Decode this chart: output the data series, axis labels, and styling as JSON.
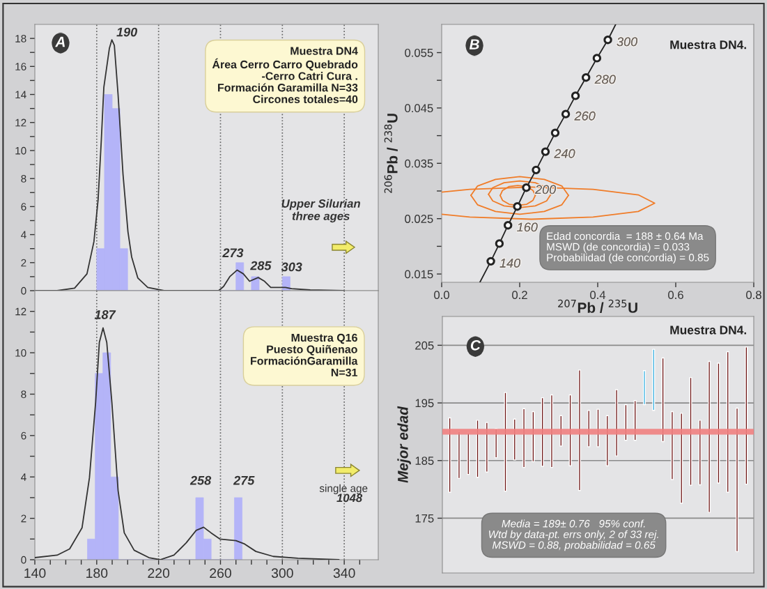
{
  "chart_data": [
    {
      "type": "histogram",
      "bins": [
        180,
        185,
        190,
        195,
        200,
        205,
        210,
        215,
        220,
        225,
        230,
        235,
        240,
        245,
        250,
        255,
        260,
        265,
        270,
        275,
        280,
        285,
        290,
        295,
        300,
        305
      ],
      "values": [
        3,
        14,
        13,
        3,
        0,
        0,
        0,
        0,
        0,
        0,
        0,
        0,
        0,
        0,
        0,
        0,
        0,
        0,
        2,
        0,
        1,
        0,
        0,
        0,
        1
      ],
      "color": "#b4b4f8",
      "series": [
        {
          "type": "line",
          "color": "#333333",
          "x": [
            140,
            154.4,
            165.7,
            173.7,
            178.2,
            180.9,
            183,
            184.6,
            188.2,
            189.8,
            191.4,
            193.8,
            197,
            200.2,
            202.6,
            206.6,
            213,
            223.5,
            258.8,
            262,
            266,
            270.8,
            274.8,
            278.8,
            284.4,
            288.5,
            292.5,
            302,
            306,
            318,
            339.8
          ],
          "values": [
            0,
            0,
            0.18,
            1.2,
            3.5,
            6.5,
            10.8,
            14.5,
            17.3,
            17.9,
            17.5,
            14,
            8.3,
            4.2,
            2.4,
            0.9,
            0.23,
            0,
            0,
            0.3,
            1.0,
            1.47,
            1.2,
            0.67,
            0.94,
            0.67,
            0.23,
            0.23,
            0.14,
            0.05,
            0
          ]
        }
      ],
      "xlim": [
        140,
        362
      ],
      "ylim": [
        0,
        19
      ],
      "yticks": [
        0,
        {
          "value": 1,
          "label": null
        },
        2,
        {
          "value": 3,
          "label": null
        },
        4,
        {
          "value": 5,
          "label": null
        },
        6,
        {
          "value": 7,
          "label": null
        },
        8,
        {
          "value": 9,
          "label": null
        },
        10,
        {
          "value": 11,
          "label": null
        },
        12,
        {
          "value": 13,
          "label": null
        },
        14,
        {
          "value": 15,
          "label": null
        },
        16,
        {
          "value": 17,
          "label": null
        },
        18
      ],
      "tick_labels": "y",
      "ref_lines": [
        {
          "axis": "x",
          "value": 180,
          "color": "#555555",
          "line_style": "dotted"
        },
        {
          "axis": "x",
          "value": 220,
          "color": "#555555",
          "line_style": "dotted"
        },
        {
          "axis": "x",
          "value": 260,
          "color": "#555555",
          "line_style": "dotted"
        },
        {
          "axis": "x",
          "value": 300,
          "color": "#555555",
          "line_style": "dotted"
        },
        {
          "axis": "x",
          "value": 340,
          "color": "#555555",
          "line_style": "dotted"
        }
      ],
      "annotations": [
        "A",
        "190",
        "273",
        "285",
        "303",
        "Muestra DN4\nÁrea Cerro Carro Quebrado\n-Cerro Catri Cura .\nFormación Garamilla N=33\nCircones totales=40",
        "Upper Silurian\nthree ages"
      ]
    },
    {
      "type": "histogram",
      "bins": [
        174,
        179,
        184,
        189,
        194,
        199,
        204,
        209,
        214,
        219,
        224,
        229,
        234,
        239,
        244,
        249,
        254,
        259,
        264,
        269,
        274
      ],
      "values": [
        1,
        9,
        10,
        4,
        0,
        0,
        0,
        0,
        0,
        0,
        0,
        0,
        0,
        0,
        3,
        1,
        0,
        0,
        0,
        3
      ],
      "color": "#b4b4f8",
      "series": [
        {
          "type": "line",
          "color": "#333333",
          "x": [
            140,
            154.4,
            162.5,
            170.5,
            175.3,
            179.3,
            181.7,
            184.1,
            186.5,
            189.8,
            193.8,
            197.8,
            204.2,
            213.8,
            221,
            229.9,
            237.9,
            244.3,
            249.1,
            253.9,
            259.6,
            270,
            275.6,
            282.9,
            294.1,
            310.1,
            336.6
          ],
          "values": [
            0.1,
            0.22,
            0.52,
            1.54,
            3.96,
            7.6,
            10.5,
            11.2,
            10.5,
            7.6,
            3.35,
            1.3,
            0.46,
            0.1,
            0,
            0.22,
            0.82,
            1.42,
            1.57,
            1.3,
            1.0,
            0.92,
            0.76,
            0.4,
            0.16,
            0.07,
            0
          ]
        }
      ],
      "xlim": [
        140,
        362
      ],
      "ylim": [
        0,
        13
      ],
      "xticks": [
        140,
        {
          "value": 150,
          "label": null
        },
        {
          "value": 160,
          "label": null
        },
        {
          "value": 170,
          "label": null
        },
        180,
        {
          "value": 190,
          "label": null
        },
        {
          "value": 200,
          "label": null
        },
        {
          "value": 210,
          "label": null
        },
        220,
        {
          "value": 230,
          "label": null
        },
        {
          "value": 240,
          "label": null
        },
        {
          "value": 250,
          "label": null
        },
        260,
        {
          "value": 270,
          "label": null
        },
        {
          "value": 280,
          "label": null
        },
        {
          "value": 290,
          "label": null
        },
        300,
        {
          "value": 310,
          "label": null
        },
        {
          "value": 320,
          "label": null
        },
        {
          "value": 330,
          "label": null
        },
        340,
        {
          "value": 350,
          "label": null
        }
      ],
      "yticks": [
        0,
        {
          "value": 1,
          "label": null
        },
        2,
        {
          "value": 3,
          "label": null
        },
        4,
        {
          "value": 5,
          "label": null
        },
        6,
        {
          "value": 7,
          "label": null
        },
        8,
        {
          "value": 9,
          "label": null
        },
        10,
        {
          "value": 11,
          "label": null
        },
        12
      ],
      "ref_lines": [
        {
          "axis": "x",
          "value": 180,
          "color": "#555555",
          "line_style": "dotted"
        },
        {
          "axis": "x",
          "value": 220,
          "color": "#555555",
          "line_style": "dotted"
        },
        {
          "axis": "x",
          "value": 260,
          "color": "#555555",
          "line_style": "dotted"
        },
        {
          "axis": "x",
          "value": 300,
          "color": "#555555",
          "line_style": "dotted"
        },
        {
          "axis": "x",
          "value": 340,
          "color": "#555555",
          "line_style": "dotted"
        }
      ],
      "annotations": [
        "187",
        "258",
        "275",
        "Muestra Q16\nPuesto Quiñenao\nFormaciónGaramilla\nN=31",
        "single age",
        "1048"
      ]
    },
    {
      "type": "line",
      "xlim": [
        0,
        0.8
      ],
      "ylim": [
        0.0135,
        0.0601
      ],
      "xticks": [
        {
          "value": 0,
          "label": "0.0"
        },
        0.2,
        0.4,
        0.6,
        0.8
      ],
      "yticks": [
        0.015,
        {
          "value": 0.02,
          "label": null
        },
        0.025,
        {
          "value": 0.03,
          "label": null
        },
        0.035,
        {
          "value": 0.04,
          "label": null
        },
        0.045,
        {
          "value": 0.05,
          "label": null
        },
        0.055
      ],
      "xlabel": "$^{207}$Pb / $^{235}$U",
      "ylabel": "$^{206}$Pb / $^{238}$U",
      "series": [
        {
          "type": "line",
          "color": "#f07c28",
          "x": [
            0,
            0.072,
            0.23,
            0.388,
            0.504,
            0.546,
            0.504,
            0.388,
            0.23,
            0.072,
            0
          ],
          "values": [
            0.0258,
            0.0253,
            0.0249,
            0.0253,
            0.0263,
            0.0278,
            0.0293,
            0.0303,
            0.0307,
            0.0303,
            0.0298
          ]
        },
        {
          "type": "line",
          "color": "#f07c28",
          "x": [
            0.075,
            0.092,
            0.138,
            0.2,
            0.263,
            0.308,
            0.325
          ],
          "values": [
            0.0292,
            0.0309,
            0.0321,
            0.0326,
            0.0321,
            0.0309,
            0.0292
          ]
        },
        {
          "type": "line",
          "color": "#f07c28",
          "x": [
            0.075,
            0.092,
            0.138,
            0.2,
            0.263,
            0.308,
            0.325
          ],
          "values": [
            0.0292,
            0.0275,
            0.0263,
            0.0258,
            0.0263,
            0.0275,
            0.0292
          ]
        },
        {
          "type": "line",
          "color": "#f07c28",
          "x": [
            0.12,
            0.131,
            0.16,
            0.2,
            0.24,
            0.269,
            0.28
          ],
          "values": [
            0.0294,
            0.0306,
            0.0315,
            0.0318,
            0.0315,
            0.0306,
            0.0294
          ]
        },
        {
          "type": "line",
          "color": "#f07c28",
          "x": [
            0.12,
            0.131,
            0.16,
            0.2,
            0.24,
            0.269,
            0.28
          ],
          "values": [
            0.0294,
            0.0282,
            0.0273,
            0.027,
            0.0273,
            0.0282,
            0.0294
          ]
        },
        {
          "type": "line",
          "color": "#f07c28",
          "x": [
            0.15,
            0.156,
            0.173,
            0.195,
            0.218,
            0.234,
            0.24
          ],
          "values": [
            0.0292,
            0.0301,
            0.0308,
            0.031,
            0.0308,
            0.0301,
            0.0292
          ]
        },
        {
          "type": "line",
          "color": "#f07c28",
          "x": [
            0.15,
            0.156,
            0.173,
            0.195,
            0.218,
            0.234,
            0.24
          ],
          "values": [
            0.0292,
            0.0283,
            0.0276,
            0.0274,
            0.0276,
            0.0283,
            0.0292
          ]
        },
        {
          "type": "line",
          "color": "#222222",
          "x": [
            0.098,
            0.126,
            0.148,
            0.17,
            0.194,
            0.217,
            0.242,
            0.266,
            0.291,
            0.318,
            0.343,
            0.37,
            0.398,
            0.426,
            0.446
          ],
          "values": [
            0.0135,
            0.0173,
            0.0205,
            0.0238,
            0.0272,
            0.0306,
            0.0338,
            0.0371,
            0.0405,
            0.0439,
            0.0472,
            0.0505,
            0.054,
            0.0573,
            0.0601
          ]
        },
        {
          "type": "scatter",
          "color": "#222222",
          "marker": "circle",
          "x": [
            0.126,
            0.148,
            0.17,
            0.194,
            0.217,
            0.242,
            0.266,
            0.291,
            0.318,
            0.343,
            0.37,
            0.398,
            0.426
          ],
          "values": [
            0.0173,
            0.0205,
            0.0238,
            0.0272,
            0.0306,
            0.0338,
            0.0371,
            0.0405,
            0.0439,
            0.0472,
            0.0505,
            0.054,
            0.0573
          ]
        }
      ],
      "annotations": [
        "B",
        "Muestra DN4.",
        "Edad concordia  = 188 ± 0.64 Ma\nMSWD (de concordia) = 0.033\nProbabilidad (de concordia) = 0.85",
        {
          "text": "140",
          "x": 0.126,
          "y": 0.0173
        },
        {
          "text": "160",
          "x": 0.17,
          "y": 0.0238
        },
        {
          "text": "200",
          "x": 0.217,
          "y": 0.0306
        },
        {
          "text": "240",
          "x": 0.266,
          "y": 0.0371
        },
        {
          "text": "260",
          "x": 0.318,
          "y": 0.0439
        },
        {
          "text": "280",
          "x": 0.37,
          "y": 0.0505
        },
        {
          "text": "300",
          "x": 0.426,
          "y": 0.0573
        }
      ]
    },
    {
      "type": "bar",
      "categories": [
        null,
        null,
        null,
        null,
        null,
        null,
        null,
        null,
        null,
        null,
        null,
        null,
        null,
        null,
        null,
        null,
        null,
        null,
        null,
        null,
        null,
        null,
        null,
        null,
        null,
        null,
        null,
        null,
        null,
        null,
        null,
        null,
        null
      ],
      "base": [
        179.5,
        181.9,
        182.6,
        182.1,
        183.0,
        185.5,
        179.7,
        185.1,
        183.8,
        184.8,
        184.0,
        183.8,
        187.5,
        184.1,
        179.8,
        187.4,
        187.4,
        184.1,
        185.8,
        188.5,
        188.5,
        194.7,
        193.7,
        188.3,
        181.7,
        177.6,
        180.7,
        180.8,
        176.0,
        181.1,
        179.5,
        169.2,
        180.9
      ],
      "values": [
        12.9,
        8.1,
        7.2,
        9.9,
        8.6,
        5.0,
        17.1,
        7.1,
        10.2,
        8.7,
        11.9,
        12.6,
        5.3,
        12.3,
        20.9,
        6.3,
        6.5,
        8.7,
        11.5,
        6.2,
        6.9,
        5.9,
        10.6,
        14.5,
        11.8,
        15.6,
        18.7,
        11.2,
        26.2,
        20.8,
        24.4,
        24.9,
        23.8
      ],
      "colors": [
        "#6b1010",
        "#6b1010",
        "#6b1010",
        "#6b1010",
        "#6b1010",
        "#6b1010",
        "#6b1010",
        "#6b1010",
        "#6b1010",
        "#6b1010",
        "#6b1010",
        "#6b1010",
        "#6b1010",
        "#6b1010",
        "#6b1010",
        "#6b1010",
        "#6b1010",
        "#6b1010",
        "#6b1010",
        "#6b1010",
        "#6b1010",
        "#35aee0",
        "#35aee0",
        "#6b1010",
        "#6b1010",
        "#6b1010",
        "#6b1010",
        "#6b1010",
        "#6b1010",
        "#6b1010",
        "#6b1010",
        "#6b1010",
        "#6b1010"
      ],
      "ylim": [
        165.5,
        210
      ],
      "yticks": [
        175,
        185,
        195,
        205
      ],
      "grid": "y",
      "ylabel": "Mejor edad",
      "ref_lines": [
        {
          "axis": "y",
          "value": 190,
          "color": "#f08080",
          "line_style": "solid"
        }
      ],
      "annotations": [
        "Muestra DN4.",
        "C",
        "Media = 189± 0.76   95% conf.\nWtd by data-pt. errs only, 2 of 33 rej.\nMSWD = 0.88, probabilidad = 0.65"
      ]
    }
  ]
}
